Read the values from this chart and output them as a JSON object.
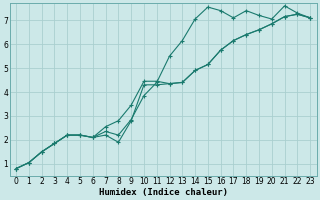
{
  "xlabel": "Humidex (Indice chaleur)",
  "bg_color": "#cce8e8",
  "grid_color": "#b8d8d8",
  "line_color": "#1a7a6e",
  "xlim": [
    -0.5,
    23.5
  ],
  "ylim": [
    0.5,
    7.7
  ],
  "xticks": [
    0,
    1,
    2,
    3,
    4,
    5,
    6,
    7,
    8,
    9,
    10,
    11,
    12,
    13,
    14,
    15,
    16,
    17,
    18,
    19,
    20,
    21,
    22,
    23
  ],
  "yticks": [
    1,
    2,
    3,
    4,
    5,
    6,
    7
  ],
  "series1_x": [
    0,
    1,
    2,
    3,
    4,
    5,
    6,
    7,
    8,
    9,
    10,
    11,
    12,
    13,
    14,
    15,
    16,
    17,
    18,
    19,
    20,
    21,
    22,
    23
  ],
  "series1_y": [
    0.8,
    1.05,
    1.5,
    1.85,
    2.2,
    2.2,
    2.1,
    2.2,
    1.9,
    2.8,
    4.3,
    4.3,
    4.35,
    4.4,
    4.9,
    5.15,
    5.75,
    6.15,
    6.4,
    6.6,
    6.85,
    7.15,
    7.25,
    7.1
  ],
  "series2_x": [
    0,
    1,
    2,
    3,
    4,
    5,
    6,
    7,
    8,
    9,
    10,
    11,
    12,
    13,
    14,
    15,
    16,
    17,
    18,
    19,
    20,
    21,
    22,
    23
  ],
  "series2_y": [
    0.8,
    1.05,
    1.5,
    1.85,
    2.2,
    2.2,
    2.1,
    2.55,
    2.8,
    3.45,
    4.45,
    4.45,
    4.35,
    4.4,
    4.9,
    5.15,
    5.75,
    6.15,
    6.4,
    6.6,
    6.85,
    7.15,
    7.25,
    7.1
  ],
  "series3_x": [
    0,
    1,
    2,
    3,
    4,
    5,
    6,
    7,
    8,
    9,
    10,
    11,
    12,
    13,
    14,
    15,
    16,
    17,
    18,
    19,
    20,
    21,
    22,
    23
  ],
  "series3_y": [
    0.8,
    1.05,
    1.5,
    1.85,
    2.2,
    2.2,
    2.1,
    2.35,
    2.2,
    2.85,
    3.85,
    4.4,
    5.5,
    6.15,
    7.05,
    7.55,
    7.4,
    7.1,
    7.4,
    7.2,
    7.05,
    7.6,
    7.3,
    7.1
  ]
}
